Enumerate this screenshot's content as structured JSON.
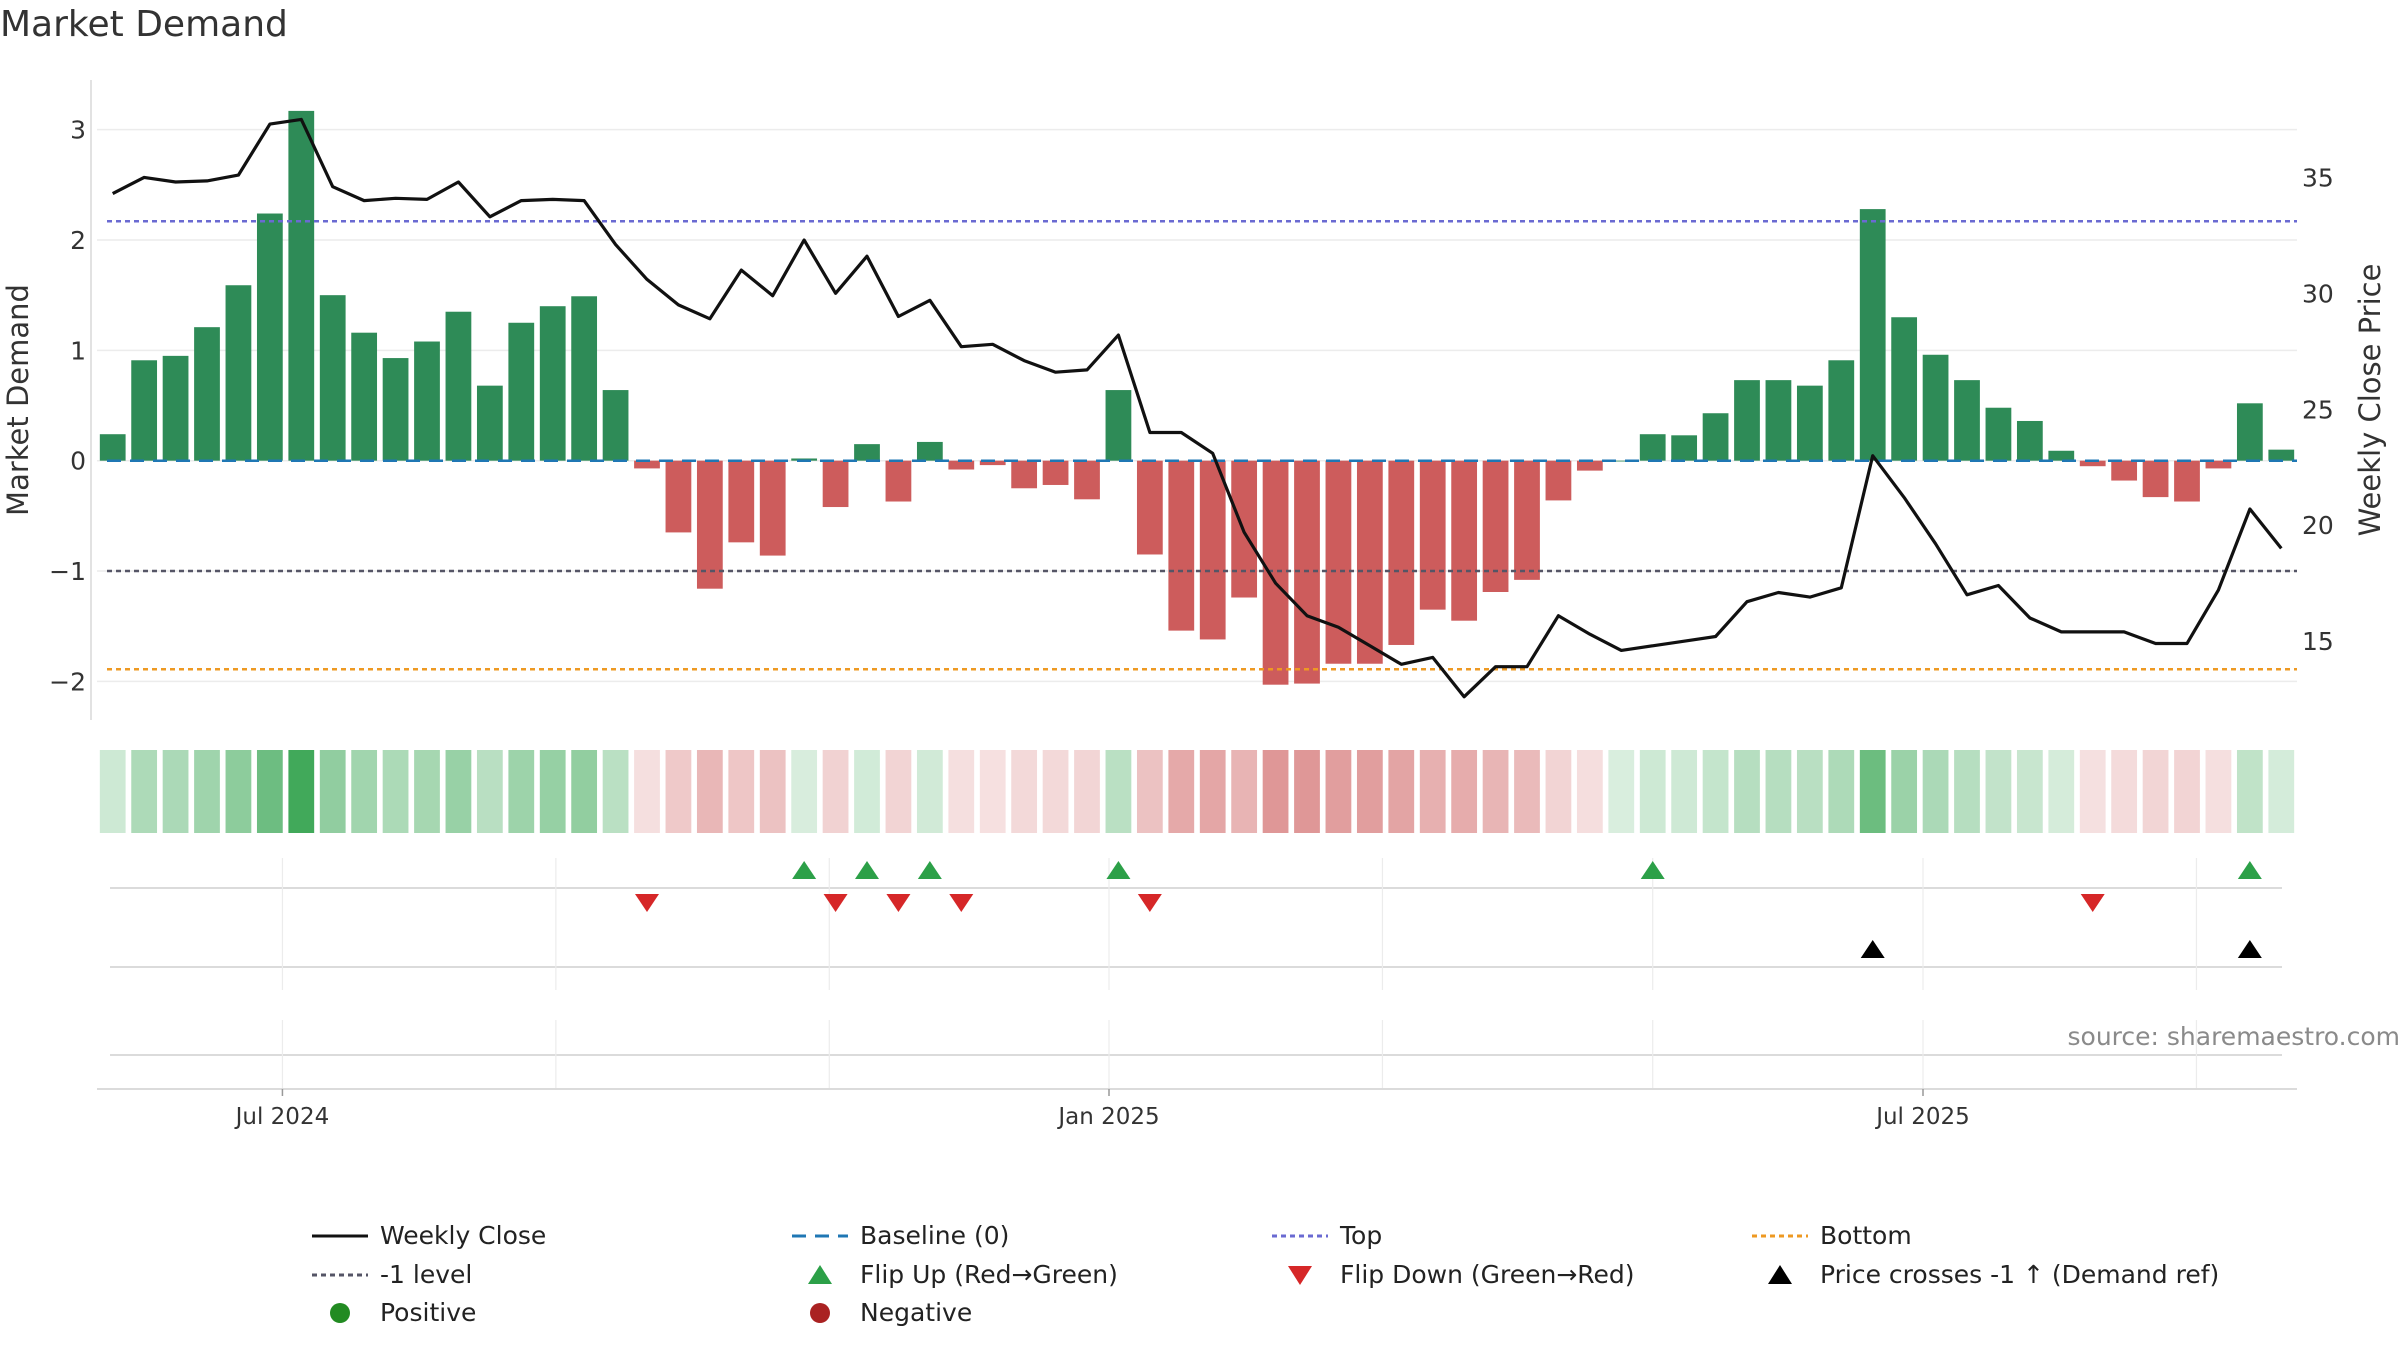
{
  "title": "Market Demand",
  "source": "source: sharemaestro.com",
  "colors": {
    "positive": "#2e8b57",
    "negative": "#cd5c5c",
    "price": "#111111",
    "baseline": "#1f77b4",
    "top": "#6a6ad2",
    "minus1": "#555566",
    "bottom": "#ee9922",
    "flip_up": "#2ca048",
    "flip_down": "#d62728",
    "cross": "#000000"
  },
  "chart_data": {
    "type": "bar",
    "x_labels": [
      "Jul 2024",
      "Jan 2025",
      "Jul 2025"
    ],
    "x_label_weeks": [
      5.4,
      31.7,
      57.6
    ],
    "ylabel": "Market Demand",
    "ylabel_right": "Weekly Close Price",
    "ylim": [
      -2.35,
      3.45
    ],
    "ylim_right": [
      11.6,
      39.2
    ],
    "yticks": [
      -2,
      -1,
      0,
      1,
      2,
      3
    ],
    "yticks_right": [
      15,
      20,
      25,
      30,
      35
    ],
    "demand": [
      0.24,
      0.91,
      0.95,
      1.21,
      1.59,
      2.24,
      3.17,
      1.5,
      1.16,
      0.93,
      1.08,
      1.35,
      0.68,
      1.25,
      1.4,
      1.49,
      0.64,
      -0.07,
      -0.65,
      -1.16,
      -0.74,
      -0.86,
      0.02,
      -0.42,
      0.15,
      -0.37,
      0.17,
      -0.08,
      -0.04,
      -0.25,
      -0.22,
      -0.35,
      0.64,
      -0.85,
      -1.54,
      -1.62,
      -1.24,
      -2.03,
      -2.02,
      -1.84,
      -1.84,
      -1.67,
      -1.35,
      -1.45,
      -1.19,
      -1.08,
      -0.36,
      -0.09,
      0.0,
      0.24,
      0.23,
      0.43,
      0.73,
      0.73,
      0.68,
      0.91,
      2.28,
      1.3,
      0.96,
      0.73,
      0.48,
      0.36,
      0.09,
      -0.05,
      -0.18,
      -0.33,
      -0.37,
      -0.07,
      0.52,
      0.1
    ],
    "close": [
      34.3,
      35.0,
      34.8,
      34.85,
      35.1,
      37.3,
      37.5,
      34.6,
      34.0,
      34.1,
      34.05,
      34.8,
      33.3,
      34.0,
      34.05,
      34.0,
      32.1,
      30.6,
      29.5,
      28.9,
      31.0,
      29.9,
      32.3,
      30.0,
      31.6,
      29.0,
      29.7,
      27.7,
      27.8,
      27.1,
      26.6,
      26.7,
      28.2,
      24.0,
      24.0,
      23.1,
      19.7,
      17.5,
      16.1,
      15.6,
      14.8,
      14.0,
      14.3,
      12.6,
      13.9,
      13.9,
      16.1,
      15.3,
      14.6,
      14.8,
      15.0,
      15.2,
      16.7,
      17.1,
      16.9,
      17.3,
      23.0,
      21.2,
      19.2,
      17.0,
      17.4,
      16.0,
      15.4,
      15.4,
      15.4,
      14.9,
      14.9,
      17.2,
      20.7,
      19.0
    ],
    "top": 2.17,
    "minus1_level": -1,
    "bottom": -1.89,
    "baseline": 0,
    "flip_up_weeks": [
      22,
      24,
      26,
      32,
      49,
      68
    ],
    "flip_down_weeks": [
      17,
      23,
      25,
      27,
      33,
      63
    ],
    "price_cross_weeks": [
      56,
      68
    ],
    "legend": [
      {
        "key": "close",
        "label": "Weekly Close"
      },
      {
        "key": "baseline",
        "label": "Baseline (0)"
      },
      {
        "key": "top",
        "label": "Top"
      },
      {
        "key": "bottom",
        "label": "Bottom"
      },
      {
        "key": "minus1",
        "label": "-1 level"
      },
      {
        "key": "flip_up",
        "label": "Flip Up (Red→Green)"
      },
      {
        "key": "flip_down",
        "label": "Flip Down (Green→Red)"
      },
      {
        "key": "cross",
        "label": "Price crosses -1 ↑ (Demand ref)"
      },
      {
        "key": "positive",
        "label": "Positive"
      },
      {
        "key": "negative",
        "label": "Negative"
      }
    ]
  }
}
